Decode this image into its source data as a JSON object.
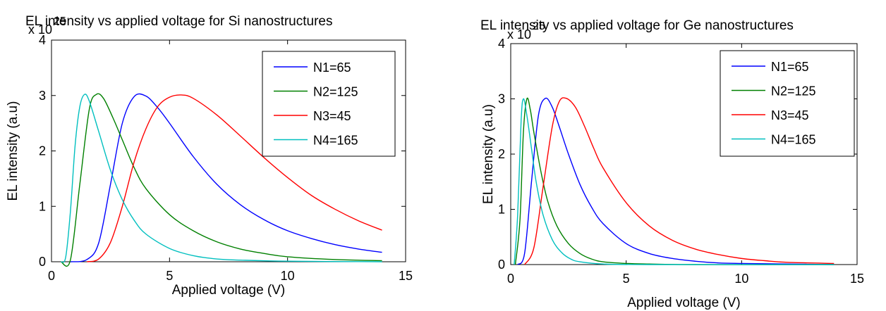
{
  "chart_data": [
    {
      "type": "line",
      "title": "EL intensity vs applied voltage for Si nanostructures",
      "xlabel": "Applied voltage (V)",
      "ylabel": "EL intensity (a.u)",
      "y_multiplier": "x 10",
      "y_exponent": "25",
      "xlim": [
        0,
        15
      ],
      "ylim": [
        0,
        4
      ],
      "xticks": [
        "0",
        "5",
        "10",
        "15"
      ],
      "yticks": [
        "0",
        "1",
        "2",
        "3",
        "4"
      ],
      "legend_position": "top-right",
      "series": [
        {
          "name": "N1=65",
          "color": "#0000ff",
          "peak_x": 3.7,
          "peak_y": 3.02,
          "x": [
            0.8,
            1.5,
            2,
            2.5,
            3,
            3.5,
            4,
            4.5,
            5,
            6,
            7,
            8,
            9,
            10,
            11,
            12,
            13,
            14
          ],
          "y": [
            0,
            0.04,
            0.34,
            1.4,
            2.5,
            2.98,
            2.99,
            2.78,
            2.5,
            1.9,
            1.4,
            1.03,
            0.76,
            0.56,
            0.42,
            0.31,
            0.23,
            0.17
          ]
        },
        {
          "name": "N2=125",
          "color": "#008000",
          "peak_x": 1.9,
          "peak_y": 3.02,
          "x": [
            0.4,
            0.8,
            1.2,
            1.6,
            1.9,
            2.2,
            2.6,
            3,
            3.5,
            4,
            5,
            6,
            7,
            8,
            9,
            10,
            12,
            14
          ],
          "y": [
            0,
            0.03,
            1.4,
            2.75,
            3.02,
            2.95,
            2.6,
            2.2,
            1.7,
            1.32,
            0.85,
            0.56,
            0.36,
            0.23,
            0.15,
            0.09,
            0.04,
            0.02
          ]
        },
        {
          "name": "N3=45",
          "color": "#ff0000",
          "peak_x": 5.4,
          "peak_y": 3.02,
          "x": [
            1.5,
            2,
            2.5,
            3,
            3.5,
            4,
            4.5,
            5,
            5.5,
            6,
            7,
            8,
            9,
            10,
            11,
            12,
            13,
            14
          ],
          "y": [
            0,
            0.05,
            0.35,
            1.0,
            1.8,
            2.4,
            2.8,
            2.97,
            3.01,
            2.95,
            2.65,
            2.27,
            1.88,
            1.52,
            1.2,
            0.95,
            0.74,
            0.57
          ]
        },
        {
          "name": "N4=165",
          "color": "#00bfbf",
          "peak_x": 1.4,
          "peak_y": 3.02,
          "x": [
            0.4,
            0.6,
            0.8,
            1.0,
            1.2,
            1.4,
            1.6,
            2,
            2.5,
            3,
            3.5,
            4,
            5,
            6,
            7,
            8,
            10,
            14
          ],
          "y": [
            0,
            0.08,
            0.9,
            2.1,
            2.8,
            3.02,
            2.9,
            2.35,
            1.65,
            1.12,
            0.75,
            0.5,
            0.24,
            0.11,
            0.05,
            0.03,
            0.01,
            0
          ]
        }
      ]
    },
    {
      "type": "line",
      "title": "EL intensity vs applied voltage for Ge nanostructures",
      "xlabel": "Applied voltage (V)",
      "ylabel": "EL intensity (a.u)",
      "y_multiplier": "x 10",
      "y_exponent": "25",
      "xlim": [
        0,
        15
      ],
      "ylim": [
        0,
        4
      ],
      "xticks": [
        "0",
        "5",
        "10",
        "15"
      ],
      "yticks": [
        "0",
        "1",
        "2",
        "3",
        "4"
      ],
      "legend_position": "top-right",
      "series": [
        {
          "name": "N1=65",
          "color": "#0000ff",
          "peak_x": 1.5,
          "peak_y": 3.02,
          "x": [
            0.3,
            0.6,
            0.9,
            1.2,
            1.5,
            1.8,
            2.1,
            2.5,
            3,
            3.5,
            4,
            5,
            6,
            7,
            8,
            9,
            10,
            12,
            14
          ],
          "y": [
            0,
            0.2,
            1.5,
            2.7,
            3.01,
            2.85,
            2.5,
            2.0,
            1.45,
            1.04,
            0.74,
            0.38,
            0.2,
            0.11,
            0.06,
            0.03,
            0.02,
            0.01,
            0
          ]
        },
        {
          "name": "N2=125",
          "color": "#008000",
          "peak_x": 0.7,
          "peak_y": 3.02,
          "x": [
            0.2,
            0.4,
            0.55,
            0.7,
            0.85,
            1.0,
            1.3,
            1.6,
            2,
            2.5,
            3,
            3.5,
            4,
            5,
            6,
            8,
            14
          ],
          "y": [
            0,
            0.8,
            2.4,
            3.0,
            2.8,
            2.4,
            1.7,
            1.15,
            0.7,
            0.38,
            0.2,
            0.1,
            0.05,
            0.02,
            0.01,
            0,
            0
          ]
        },
        {
          "name": "N3=45",
          "color": "#ff0000",
          "peak_x": 2.3,
          "peak_y": 3.02,
          "x": [
            0.6,
            1.0,
            1.4,
            1.8,
            2.1,
            2.4,
            2.8,
            3.2,
            3.6,
            4,
            5,
            6,
            7,
            8,
            9,
            10,
            11,
            12,
            14
          ],
          "y": [
            0,
            0.3,
            1.4,
            2.5,
            2.95,
            3.01,
            2.85,
            2.5,
            2.1,
            1.75,
            1.12,
            0.7,
            0.44,
            0.28,
            0.18,
            0.11,
            0.07,
            0.04,
            0.02
          ]
        },
        {
          "name": "N4=165",
          "color": "#00bfbf",
          "peak_x": 0.55,
          "peak_y": 3.02,
          "x": [
            0.15,
            0.3,
            0.45,
            0.55,
            0.7,
            0.9,
            1.1,
            1.4,
            1.8,
            2.2,
            2.6,
            3,
            4,
            6,
            14
          ],
          "y": [
            0,
            0.9,
            2.6,
            3.0,
            2.7,
            2.1,
            1.5,
            0.9,
            0.45,
            0.22,
            0.1,
            0.05,
            0.01,
            0,
            0
          ]
        }
      ]
    }
  ]
}
